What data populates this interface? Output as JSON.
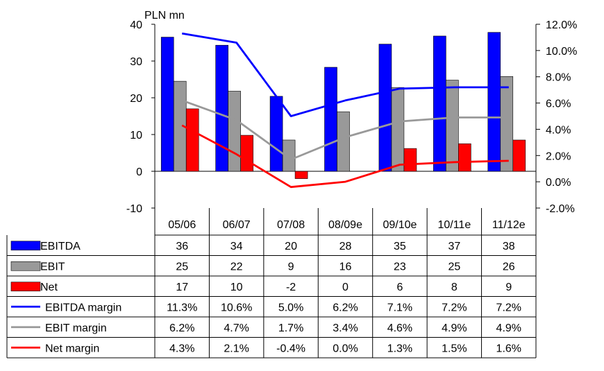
{
  "chart_data": {
    "type": "bar",
    "unit_label": "PLN mn",
    "categories": [
      "05/06",
      "06/07",
      "07/08",
      "08/09e",
      "09/10e",
      "10/11e",
      "11/12e"
    ],
    "left_axis": {
      "min": -10,
      "max": 40,
      "ticks": [
        "-10",
        "0",
        "10",
        "20",
        "30",
        "40"
      ]
    },
    "right_axis": {
      "min": -2,
      "max": 12,
      "ticks": [
        "-2.0%",
        "0.0%",
        "2.0%",
        "4.0%",
        "6.0%",
        "8.0%",
        "10.0%",
        "12.0%"
      ]
    },
    "grid": false,
    "legend": "data-table",
    "bar_series": [
      {
        "name": "EBITDA",
        "color": "#0000ff",
        "values": [
          36.5,
          34.3,
          20.4,
          28.3,
          34.6,
          36.8,
          37.8
        ],
        "labels": [
          "36",
          "34",
          "20",
          "28",
          "35",
          "37",
          "38"
        ]
      },
      {
        "name": "EBIT",
        "color": "#999999",
        "values": [
          24.5,
          21.8,
          8.5,
          16.2,
          22.8,
          24.8,
          25.8
        ],
        "labels": [
          "25",
          "22",
          "9",
          "16",
          "23",
          "25",
          "26"
        ]
      },
      {
        "name": "Net",
        "color": "#ff0000",
        "values": [
          17.0,
          9.8,
          -2.0,
          0.0,
          6.2,
          7.5,
          8.5
        ],
        "labels": [
          "17",
          "10",
          "-2",
          "0",
          "6",
          "8",
          "9"
        ]
      }
    ],
    "line_series": [
      {
        "name": "EBITDA margin",
        "color": "#0000ff",
        "values": [
          11.3,
          10.6,
          5.0,
          6.2,
          7.1,
          7.2,
          7.2
        ],
        "labels": [
          "11.3%",
          "10.6%",
          "5.0%",
          "6.2%",
          "7.1%",
          "7.2%",
          "7.2%"
        ]
      },
      {
        "name": "EBIT margin",
        "color": "#999999",
        "values": [
          6.2,
          4.7,
          1.7,
          3.4,
          4.6,
          4.9,
          4.9
        ],
        "labels": [
          "6.2%",
          "4.7%",
          "1.7%",
          "3.4%",
          "4.6%",
          "4.9%",
          "4.9%"
        ]
      },
      {
        "name": "Net margin",
        "color": "#ff0000",
        "values": [
          4.3,
          2.1,
          -0.4,
          0.0,
          1.3,
          1.5,
          1.6
        ],
        "labels": [
          "4.3%",
          "2.1%",
          "-0.4%",
          "0.0%",
          "1.3%",
          "1.5%",
          "1.6%"
        ]
      }
    ]
  }
}
